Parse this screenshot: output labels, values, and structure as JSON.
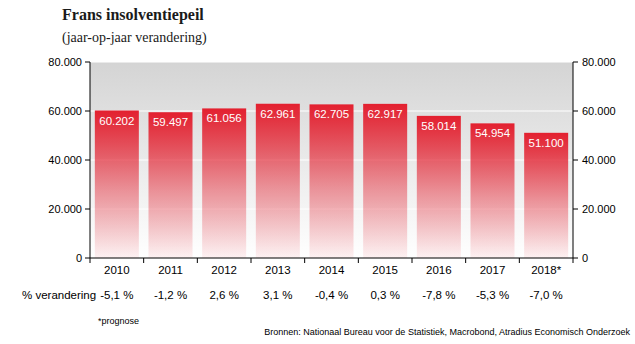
{
  "chart_data": {
    "type": "bar",
    "title": "Frans insolventiepeil",
    "subtitle": "(jaar-op-jaar verandering)",
    "categories": [
      "2010",
      "2011",
      "2012",
      "2013",
      "2014",
      "2015",
      "2016",
      "2017",
      "2018*"
    ],
    "values": [
      60202,
      59497,
      61056,
      62961,
      62705,
      62917,
      58014,
      54954,
      51100
    ],
    "value_labels": [
      "60.202",
      "59.497",
      "61.056",
      "62.961",
      "62.705",
      "62.917",
      "58.014",
      "54.954",
      "51.100"
    ],
    "color": "#e3202f",
    "data_labels": true,
    "grid": true,
    "ylim": [
      0,
      80000
    ],
    "yticks": [
      0,
      {
        "value": 20000,
        "label": "20.000"
      },
      {
        "value": 40000,
        "label": "40.000"
      },
      {
        "value": 60000,
        "label": "60.000"
      },
      {
        "value": 80000,
        "label": "80.000"
      }
    ],
    "y2lim": [
      0,
      80000
    ],
    "y2ticks": [
      0,
      {
        "value": 20000,
        "label": "20.000"
      },
      {
        "value": 40000,
        "label": "40.000"
      },
      {
        "value": 60000,
        "label": "60.000"
      },
      {
        "value": 80000,
        "label": "80.000"
      }
    ],
    "change_title": "% verandering",
    "changes": [
      -5.1,
      -1.2,
      2.6,
      3.1,
      -0.4,
      0.3,
      -7.8,
      -5.3,
      -7.0
    ],
    "change_labels": [
      "-5,1 %",
      "-1,2 %",
      "2,6 %",
      "3,1 %",
      "-0,4 %",
      "0,3 %",
      "-7,8 %",
      "-5,3 %",
      "-7,0 %"
    ],
    "footnote": "*prognose",
    "source": "Bronnen: Nationaal Bureau voor de Statistiek, Macrobond, Atradius Economisch Onderzoek"
  }
}
